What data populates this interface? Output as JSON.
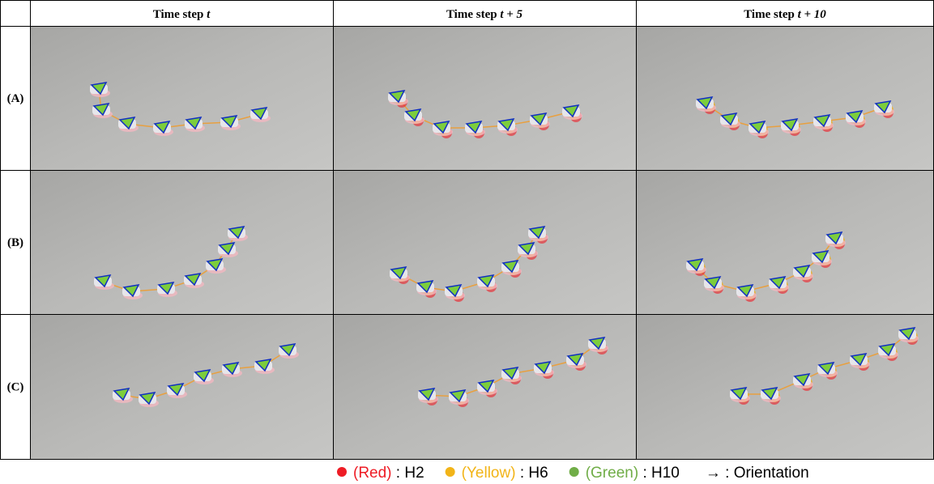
{
  "header": {
    "columns": [
      {
        "label": "Time step",
        "math": "t"
      },
      {
        "label": "Time step",
        "math": "t + 5"
      },
      {
        "label": "Time step",
        "math": "t + 10"
      }
    ]
  },
  "rows": [
    "(A)",
    "(B)",
    "(C)"
  ],
  "legend": [
    {
      "name": "(Red)",
      "color": "#ee1c25",
      "text": ": H2"
    },
    {
      "name": "(Yellow)",
      "color": "#f2b418",
      "text": ": H6"
    },
    {
      "name": "(Green)",
      "color": "#70ad47",
      "text": ": H10"
    },
    {
      "name": "→",
      "color": "#000000",
      "text": ": Orientation"
    }
  ]
}
